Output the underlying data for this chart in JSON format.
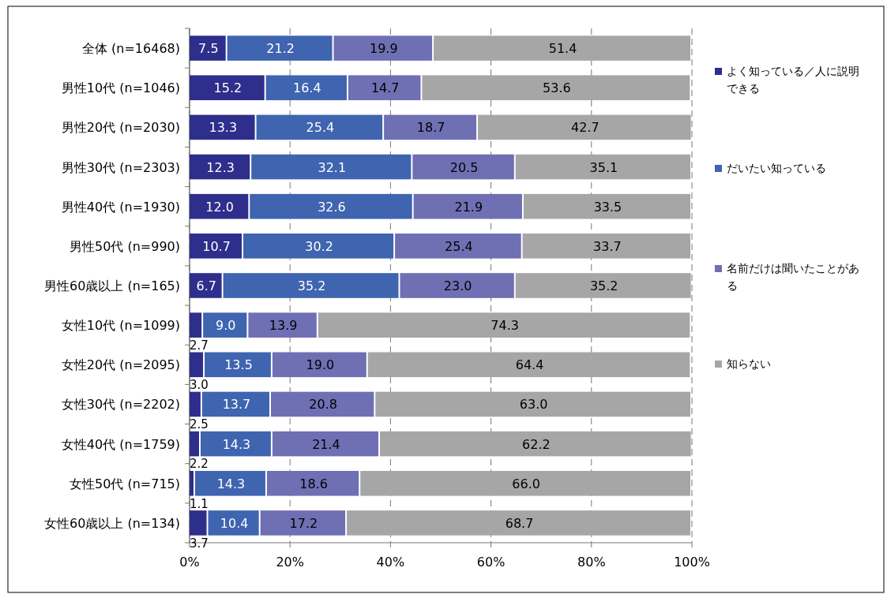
{
  "chart_data": {
    "type": "bar",
    "orientation": "horizontal",
    "stacked": true,
    "grid": "x",
    "legend": "right",
    "categories": [
      "全体 (n=16468)",
      "男性10代 (n=1046)",
      "男性20代 (n=2030)",
      "男性30代 (n=2303)",
      "男性40代 (n=1930)",
      "男性50代 (n=990)",
      "男性60歳以上 (n=165)",
      "女性10代 (n=1099)",
      "女性20代 (n=2095)",
      "女性30代 (n=2202)",
      "女性40代 (n=1759)",
      "女性50代 (n=715)",
      "女性60歳以上 (n=134)"
    ],
    "xlim": [
      0,
      100
    ],
    "xticks": [
      {
        "value": 0,
        "label": "0%"
      },
      {
        "value": 20,
        "label": "20%"
      },
      {
        "value": 40,
        "label": "40%"
      },
      {
        "value": 60,
        "label": "60%"
      },
      {
        "value": 80,
        "label": "80%"
      },
      {
        "value": 100,
        "label": "100%"
      }
    ],
    "series": [
      {
        "name": "よく知っている／人に説明できる",
        "color": "#2e2e8c",
        "values": [
          7.5,
          15.2,
          13.3,
          12.3,
          12.0,
          10.7,
          6.7,
          2.7,
          3.0,
          2.5,
          2.2,
          1.1,
          3.7
        ],
        "value_labels": [
          "7.5",
          "15.2",
          "13.3",
          "12.3",
          "12.0",
          "10.7",
          "6.7",
          "2.7",
          "3.0",
          "2.5",
          "2.2",
          "1.1",
          "3.7"
        ]
      },
      {
        "name": "だいたい知っている",
        "color": "#3f64b0",
        "values": [
          21.2,
          16.4,
          25.4,
          32.1,
          32.6,
          30.2,
          35.2,
          9.0,
          13.5,
          13.7,
          14.3,
          14.3,
          10.4
        ],
        "value_labels": [
          "21.2",
          "16.4",
          "25.4",
          "32.1",
          "32.6",
          "30.2",
          "35.2",
          "9.0",
          "13.5",
          "13.7",
          "14.3",
          "14.3",
          "10.4"
        ]
      },
      {
        "name": "名前だけは聞いたことがある",
        "color": "#6f6fb4",
        "values": [
          19.9,
          14.7,
          18.7,
          20.5,
          21.9,
          25.4,
          23.0,
          13.9,
          19.0,
          20.8,
          21.4,
          18.6,
          17.2
        ],
        "value_labels": [
          "19.9",
          "14.7",
          "18.7",
          "20.5",
          "21.9",
          "25.4",
          "23.0",
          "13.9",
          "19.0",
          "20.8",
          "21.4",
          "18.6",
          "17.2"
        ]
      },
      {
        "name": "知らない",
        "color": "#a6a6a6",
        "values": [
          51.4,
          53.6,
          42.7,
          35.1,
          33.5,
          33.7,
          35.2,
          74.3,
          64.4,
          63.0,
          62.2,
          66.0,
          68.7
        ],
        "value_labels": [
          "51.4",
          "53.6",
          "42.7",
          "35.1",
          "33.5",
          "33.7",
          "35.2",
          "74.3",
          "64.4",
          "63.0",
          "62.2",
          "66.0",
          "68.7"
        ]
      }
    ]
  }
}
